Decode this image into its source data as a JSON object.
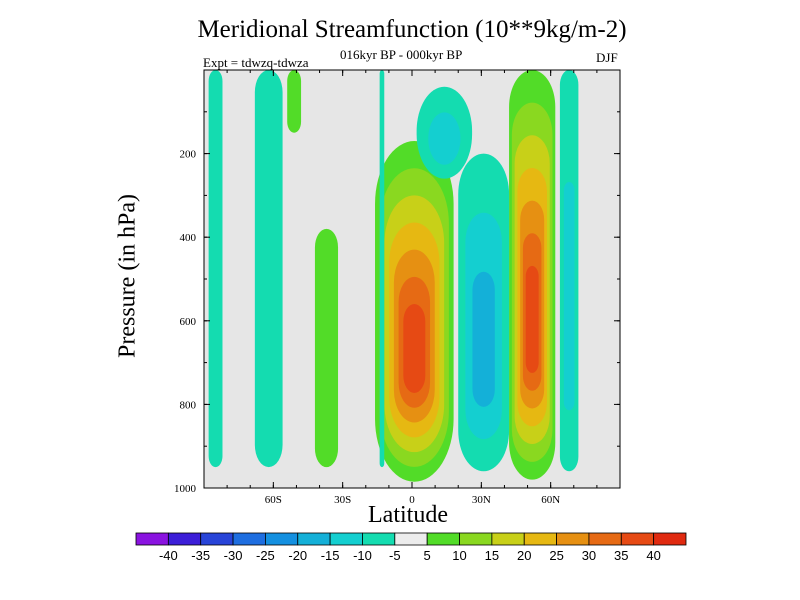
{
  "chart_data": {
    "type": "heatmap",
    "title": "Meridional Streamfunction (10**9kg/m-2)",
    "subtitle": "016kyr BP - 000kyr BP",
    "left_annotation": "Expt = tdwzq-tdwza",
    "right_annotation": "DJF",
    "xlabel": "Latitude",
    "ylabel": "Pressure (in hPa)",
    "xlim": [
      -90,
      90
    ],
    "ylim": [
      1000,
      0
    ],
    "x_ticks": [
      {
        "value": -60,
        "label": "60S"
      },
      {
        "value": -30,
        "label": "30S"
      },
      {
        "value": 0,
        "label": "0"
      },
      {
        "value": 30,
        "label": "30N"
      },
      {
        "value": 60,
        "label": "60N"
      }
    ],
    "y_ticks": [
      {
        "value": 200,
        "label": "200"
      },
      {
        "value": 400,
        "label": "400"
      },
      {
        "value": 600,
        "label": "600"
      },
      {
        "value": 800,
        "label": "800"
      },
      {
        "value": 1000,
        "label": "1000"
      }
    ],
    "missing_color": "#e6e6e6",
    "colorbar": {
      "levels": [
        -40,
        -35,
        -30,
        -25,
        -20,
        -15,
        -10,
        -5,
        5,
        10,
        15,
        20,
        25,
        30,
        35,
        40
      ],
      "labels": [
        "-40",
        "-35",
        "-30",
        "-25",
        "-20",
        "-15",
        "-10",
        "-5",
        "5",
        "10",
        "15",
        "20",
        "25",
        "30",
        "35",
        "40"
      ],
      "colors": [
        "#8a13e0",
        "#3c1ed8",
        "#2844d8",
        "#1e6ee0",
        "#1490e0",
        "#14b0d8",
        "#14cfd0",
        "#14dcb0",
        "#ececec",
        "#52dc28",
        "#8ad820",
        "#c8d018",
        "#e6b812",
        "#e69012",
        "#e66a14",
        "#e64a14",
        "#e02a10"
      ]
    },
    "fields": [
      {
        "name": "nh-positive-cell",
        "lat": [
          [
            42,
            62
          ]
        ],
        "value_peak": 40,
        "p_range": [
          0,
          980
        ]
      },
      {
        "name": "tropical-positive-cell",
        "lat": [
          [
            -16,
            18
          ]
        ],
        "value_peak": 40,
        "p_range": [
          170,
          985
        ]
      },
      {
        "name": "tropical-negative-cell",
        "lat": [
          [
            20,
            42
          ]
        ],
        "value_peak": -20,
        "p_range": [
          200,
          960
        ]
      },
      {
        "name": "upper-negative-cell",
        "lat": [
          [
            2,
            26
          ]
        ],
        "value_peak": -15,
        "p_range": [
          40,
          260
        ]
      },
      {
        "name": "sh-weak-positive-cell",
        "lat": [
          [
            -42,
            -32
          ]
        ],
        "value_peak": 10,
        "p_range": [
          380,
          950
        ]
      },
      {
        "name": "sh-weak-negative-bands",
        "lat": [
          [
            -88,
            -82
          ],
          [
            -68,
            -56
          ],
          [
            -14,
            -12
          ]
        ],
        "value_peak": -10,
        "p_range": [
          0,
          950
        ]
      },
      {
        "name": "high-latitude-positive-band",
        "lat": [
          [
            -54,
            -48
          ]
        ],
        "value_peak": 10,
        "p_range": [
          0,
          150
        ]
      },
      {
        "name": "nh-high-lat-negative-band",
        "lat": [
          [
            64,
            72
          ]
        ],
        "value_peak": -15,
        "p_range": [
          0,
          960
        ]
      }
    ]
  }
}
